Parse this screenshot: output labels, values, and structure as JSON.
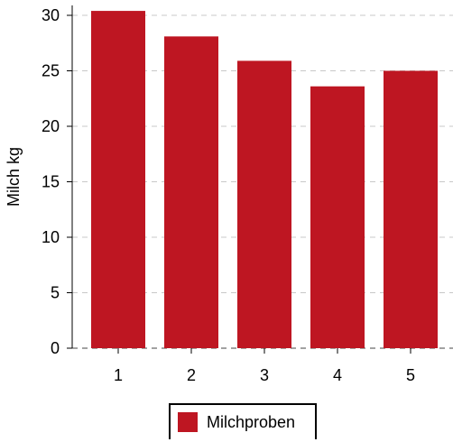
{
  "chart_data": {
    "type": "bar",
    "categories": [
      "1",
      "2",
      "3",
      "4",
      "5"
    ],
    "series": [
      {
        "name": "Milchproben",
        "values": [
          30.4,
          28.1,
          25.9,
          23.6,
          25.0
        ]
      }
    ],
    "ylabel": "Milch kg",
    "xlabel": "",
    "ylim": [
      0,
      30
    ],
    "yticks": [
      0,
      5,
      10,
      15,
      20,
      25,
      30
    ],
    "grid": true,
    "legend_position": "bottom",
    "bar_color": "#be1622"
  }
}
